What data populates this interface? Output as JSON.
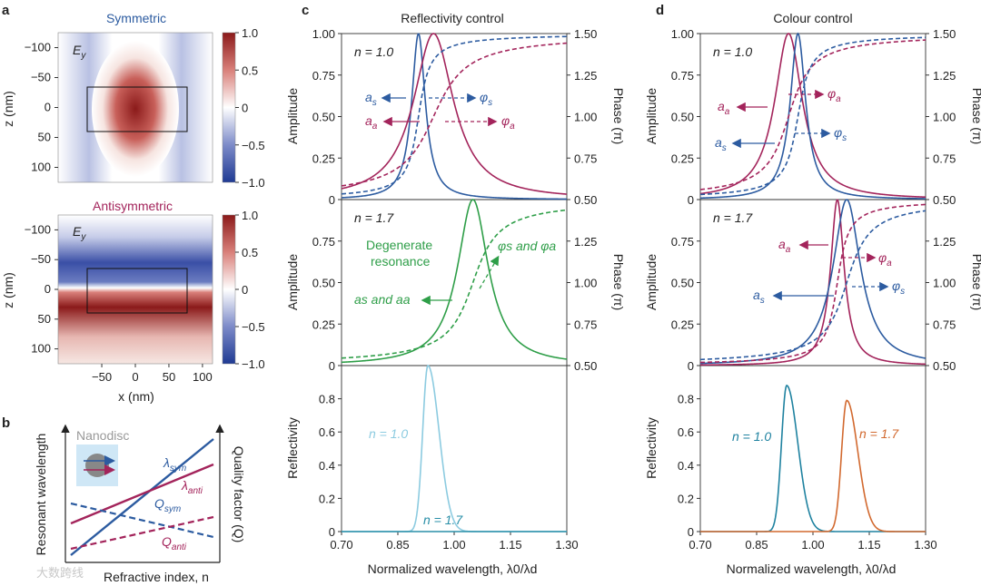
{
  "panel_letters": {
    "a": "a",
    "b": "b",
    "c": "c",
    "d": "d"
  },
  "panel_a": {
    "top_title": "Symmetric",
    "bottom_title": "Antisymmetric",
    "field_label": "E",
    "field_sub": "y",
    "ylabel": "z (nm)",
    "xlabel": "x (nm)",
    "y_ticks": [
      "−100",
      "−50",
      "0",
      "50",
      "100"
    ],
    "x_ticks": [
      "−50",
      "0",
      "50",
      "100"
    ],
    "colorbar_ticks": [
      "1.0",
      "0.5",
      "0",
      "−0.5",
      "−1.0"
    ],
    "colors": {
      "positive": "#8b1a1a",
      "negative": "#1f3a93",
      "zero": "#ffffff"
    }
  },
  "panel_b": {
    "title": "Nanodisc",
    "ylabel_left": "Resonant wavelength",
    "ylabel_right": "Quality factor (Q)",
    "xlabel": "Refractive index, n",
    "lines": {
      "lambda_sym": "λ",
      "lambda_sym_sub": "sym",
      "lambda_anti": "λ",
      "lambda_anti_sub": "anti",
      "q_sym": "Q",
      "q_sym_sub": "sym",
      "q_anti": "Q",
      "q_anti_sub": "anti"
    },
    "colors": {
      "sym": "#2c5ba0",
      "anti": "#a3245b"
    }
  },
  "panel_c": {
    "title": "Reflectivity control",
    "xlabel": "Normalized wavelength, λ0/λd",
    "amplitude_label": "Amplitude",
    "phase_label": "Phase (π)",
    "reflectivity_label": "Reflectivity",
    "n_top": "n = 1.0",
    "n_mid": "n = 1.7",
    "ann_as": "a",
    "ann_as_sub": "s",
    "ann_aa": "a",
    "ann_aa_sub": "a",
    "ann_phis": "φ",
    "ann_phis_sub": "s",
    "ann_phia": "φ",
    "ann_phia_sub": "a",
    "degenerate_1": "Degenerate",
    "degenerate_2": "resonance",
    "ann_a_and": "as and aa",
    "ann_phi_and": "φs and φa",
    "refl_n1": "n = 1.0",
    "refl_n17": "n = 1.7"
  },
  "panel_d": {
    "title": "Colour control",
    "xlabel": "Normalized wavelength, λ0/λd",
    "amplitude_label": "Amplitude",
    "phase_label": "Phase (π)",
    "reflectivity_label": "Reflectivity",
    "n_top": "n = 1.0",
    "n_mid": "n = 1.7",
    "refl_n1": "n = 1.0",
    "refl_n17": "n = 1.7"
  },
  "watermark": "大数跨线",
  "chart_data": [
    {
      "type": "line",
      "panel": "c-top",
      "xlim": [
        0.7,
        1.3
      ],
      "ylim": [
        0,
        1.0
      ],
      "y2lim": [
        0.5,
        1.5
      ],
      "x_ticks": [
        0.7,
        0.85,
        1.0,
        1.15,
        1.3
      ],
      "y_ticks": [
        0,
        0.25,
        0.5,
        0.75,
        1.0
      ],
      "y_tick_labels": [
        "0",
        "0.25",
        "0.50",
        "0.75",
        "1.00"
      ],
      "y2_ticks": [
        0.5,
        0.75,
        1.0,
        1.25,
        1.5
      ],
      "y2_tick_labels": [
        "0.50",
        "0.75",
        "1.00",
        "1.25",
        "1.50"
      ],
      "series": [
        {
          "name": "as",
          "kind": "amplitude",
          "color": "#2c5ba0",
          "center": 0.905,
          "gamma": 0.022
        },
        {
          "name": "aa",
          "kind": "amplitude",
          "color": "#a3245b",
          "center": 0.945,
          "gamma": 0.065
        },
        {
          "name": "φs",
          "kind": "phase",
          "color": "#2c5ba0",
          "center": 0.905,
          "gamma": 0.022
        },
        {
          "name": "φa",
          "kind": "phase",
          "color": "#a3245b",
          "center": 0.945,
          "gamma": 0.065
        }
      ]
    },
    {
      "type": "line",
      "panel": "c-mid",
      "xlim": [
        0.7,
        1.3
      ],
      "ylim": [
        0,
        1.0
      ],
      "y2lim": [
        0.5,
        1.5
      ],
      "y_ticks": [
        0,
        0.25,
        0.5,
        0.75,
        1.0
      ],
      "y_tick_labels": [
        "0",
        "0.25",
        "0.50",
        "0.75",
        ""
      ],
      "y2_ticks": [
        0.5,
        0.75,
        1.0,
        1.25,
        1.5
      ],
      "y2_tick_labels": [
        "0.50",
        "0.75",
        "1.00",
        "1.25",
        ""
      ],
      "series": [
        {
          "name": "as and aa",
          "kind": "amplitude",
          "color": "#2e9e48",
          "center": 1.05,
          "gamma": 0.05
        },
        {
          "name": "φs and φa",
          "kind": "phase",
          "color": "#2e9e48",
          "center": 1.05,
          "gamma": 0.05
        }
      ]
    },
    {
      "type": "line",
      "panel": "c-bottom",
      "xlim": [
        0.7,
        1.3
      ],
      "ylim": [
        0,
        1.0
      ],
      "x_ticks": [
        0.7,
        0.85,
        1.0,
        1.15,
        1.3
      ],
      "x_tick_labels": [
        "0.70",
        "0.85",
        "1.00",
        "1.15",
        "1.30"
      ],
      "y_ticks": [
        0,
        0.2,
        0.4,
        0.6,
        0.8
      ],
      "y_tick_labels": [
        "0",
        "0.2",
        "0.4",
        "0.6",
        "0.8"
      ],
      "series": [
        {
          "name": "n = 1.0",
          "color": "#8ccbe0",
          "peak_x": 0.93,
          "peak_y": 1.0
        },
        {
          "name": "n = 1.7",
          "color": "#2a8fa8",
          "peak_x": 1.05,
          "peak_y": 0.0
        }
      ]
    },
    {
      "type": "line",
      "panel": "d-top",
      "xlim": [
        0.7,
        1.3
      ],
      "ylim": [
        0,
        1.0
      ],
      "y2lim": [
        0.5,
        1.5
      ],
      "y_tick_labels": [
        "0",
        "0.25",
        "0.50",
        "0.75",
        "1.00"
      ],
      "y2_tick_labels": [
        "0.50",
        "0.75",
        "1.00",
        "1.25",
        "1.50"
      ],
      "series": [
        {
          "name": "aa",
          "kind": "amplitude",
          "color": "#a3245b",
          "center": 0.935,
          "gamma": 0.045
        },
        {
          "name": "as",
          "kind": "amplitude",
          "color": "#2c5ba0",
          "center": 0.96,
          "gamma": 0.025
        },
        {
          "name": "φa",
          "kind": "phase",
          "color": "#a3245b",
          "center": 0.935,
          "gamma": 0.045
        },
        {
          "name": "φs",
          "kind": "phase",
          "color": "#2c5ba0",
          "center": 0.96,
          "gamma": 0.025
        }
      ]
    },
    {
      "type": "line",
      "panel": "d-mid",
      "xlim": [
        0.7,
        1.3
      ],
      "ylim": [
        0,
        1.0
      ],
      "y2lim": [
        0.5,
        1.5
      ],
      "y_tick_labels": [
        "0",
        "0.25",
        "0.50",
        "0.75",
        ""
      ],
      "y2_tick_labels": [
        "0.50",
        "0.75",
        "1.00",
        "1.25",
        ""
      ],
      "series": [
        {
          "name": "aa",
          "kind": "amplitude",
          "color": "#a3245b",
          "center": 1.065,
          "gamma": 0.022
        },
        {
          "name": "as",
          "kind": "amplitude",
          "color": "#2c5ba0",
          "center": 1.09,
          "gamma": 0.045
        },
        {
          "name": "φa",
          "kind": "phase",
          "color": "#a3245b",
          "center": 1.065,
          "gamma": 0.022
        },
        {
          "name": "φs",
          "kind": "phase",
          "color": "#2c5ba0",
          "center": 1.09,
          "gamma": 0.045
        }
      ]
    },
    {
      "type": "line",
      "panel": "d-bottom",
      "xlim": [
        0.7,
        1.3
      ],
      "ylim": [
        0,
        1.0
      ],
      "x_tick_labels": [
        "0.70",
        "0.85",
        "1.00",
        "1.15",
        "1.30"
      ],
      "y_tick_labels": [
        "0",
        "0.2",
        "0.4",
        "0.6",
        "0.8"
      ],
      "series": [
        {
          "name": "n = 1.0",
          "color": "#1f82a0",
          "peak_x": 0.93,
          "peak_y": 0.88
        },
        {
          "name": "n = 1.7",
          "color": "#d2692f",
          "peak_x": 1.09,
          "peak_y": 0.79
        }
      ]
    }
  ]
}
